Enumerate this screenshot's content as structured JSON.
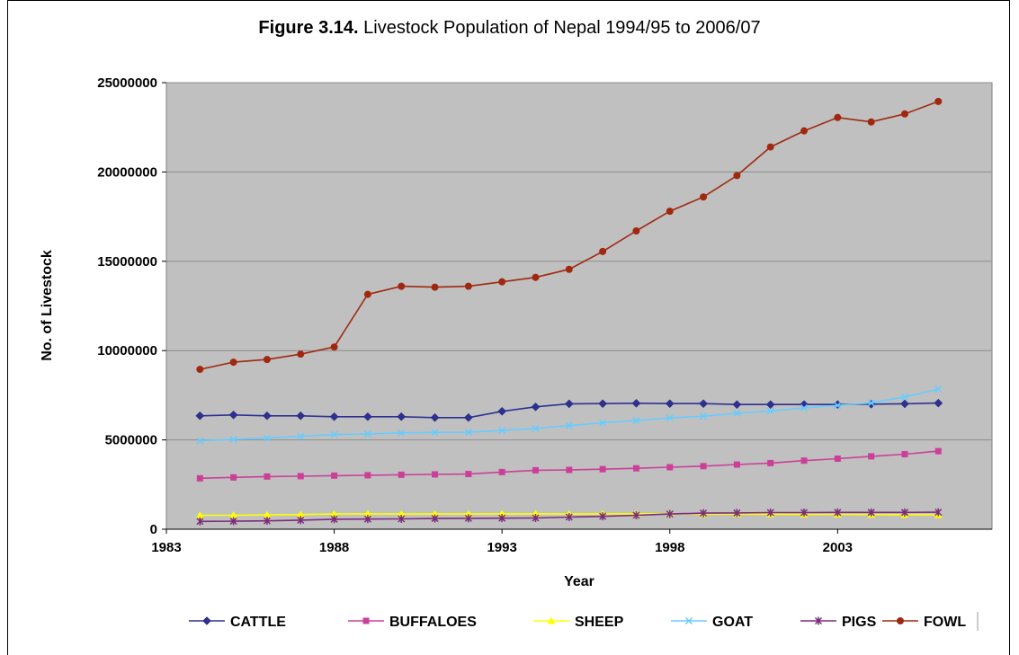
{
  "figure": {
    "label": "Figure 3.14.",
    "caption": " Livestock Population of Nepal 1994/95 to 2006/07"
  },
  "chart_data": {
    "type": "line",
    "xlabel": "Year",
    "ylabel": "No. of Livestock",
    "xlim": [
      1983,
      2007.6
    ],
    "ylim": [
      0,
      25000000
    ],
    "x_ticks": [
      1983,
      1988,
      1993,
      1998,
      2003
    ],
    "y_ticks": [
      0,
      5000000,
      10000000,
      15000000,
      20000000,
      25000000
    ],
    "grid": "horizontal",
    "legend_position": "bottom",
    "plot_background": "#c0c0c0",
    "x": [
      1984,
      1985,
      1986,
      1987,
      1988,
      1989,
      1990,
      1991,
      1992,
      1993,
      1994,
      1995,
      1996,
      1997,
      1998,
      1999,
      2000,
      2001,
      2002,
      2003,
      2004,
      2005,
      2006
    ],
    "series": [
      {
        "name": "CATTLE",
        "color": "#2e3192",
        "marker": "diamond",
        "values": [
          6350000,
          6400000,
          6350000,
          6350000,
          6300000,
          6300000,
          6300000,
          6250000,
          6250000,
          6600000,
          6850000,
          7020000,
          7030000,
          7050000,
          7030000,
          7030000,
          6980000,
          6980000,
          6980000,
          6980000,
          7000000,
          7020000,
          7060000
        ]
      },
      {
        "name": "BUFFALOES",
        "color": "#cc3f99",
        "marker": "square",
        "values": [
          2850000,
          2900000,
          2950000,
          2970000,
          3000000,
          3020000,
          3050000,
          3070000,
          3090000,
          3200000,
          3300000,
          3320000,
          3360000,
          3410000,
          3470000,
          3530000,
          3620000,
          3700000,
          3840000,
          3950000,
          4080000,
          4200000,
          4370000
        ]
      },
      {
        "name": "SHEEP",
        "color": "#ffff00",
        "marker": "triangle",
        "values": [
          780000,
          780000,
          800000,
          820000,
          850000,
          860000,
          850000,
          850000,
          850000,
          860000,
          860000,
          850000,
          860000,
          860000,
          860000,
          850000,
          850000,
          840000,
          830000,
          830000,
          820000,
          810000,
          800000
        ]
      },
      {
        "name": "GOAT",
        "color": "#66ccff",
        "marker": "x",
        "values": [
          4950000,
          5030000,
          5100000,
          5200000,
          5300000,
          5330000,
          5390000,
          5420000,
          5430000,
          5530000,
          5640000,
          5800000,
          5960000,
          6080000,
          6230000,
          6330000,
          6490000,
          6620000,
          6790000,
          6930000,
          7070000,
          7410000,
          7840000
        ]
      },
      {
        "name": "PIGS",
        "color": "#7b2c7b",
        "marker": "star",
        "values": [
          440000,
          450000,
          470000,
          510000,
          560000,
          570000,
          580000,
          600000,
          610000,
          620000,
          630000,
          680000,
          720000,
          780000,
          850000,
          900000,
          910000,
          930000,
          930000,
          940000,
          940000,
          940000,
          950000
        ]
      },
      {
        "name": "FOWL",
        "color": "#a02810",
        "marker": "circle",
        "values": [
          8950000,
          9350000,
          9500000,
          9800000,
          10200000,
          13150000,
          13600000,
          13550000,
          13600000,
          13850000,
          14100000,
          14550000,
          15550000,
          16700000,
          17800000,
          18600000,
          19800000,
          21400000,
          22300000,
          23050000,
          22800000,
          23250000,
          23950000
        ]
      }
    ]
  }
}
